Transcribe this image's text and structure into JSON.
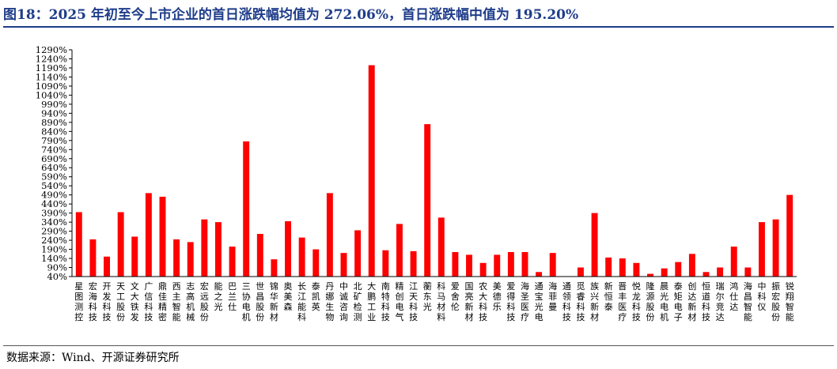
{
  "figure": {
    "title": "图18：2025 年初至今上市企业的首日涨跌幅均值为 272.06%，首日涨跌幅中值为 195.20%",
    "source": "数据来源：Wind、开源证券研究所"
  },
  "chart_data": {
    "type": "bar",
    "title": "",
    "xlabel": "",
    "ylabel": "",
    "ylim": [
      40,
      1290
    ],
    "ytick_step": 50,
    "ytick_suffix": "%",
    "bar_color": "#ff0000",
    "categories": [
      "星图测控",
      "宏海科技",
      "开发科技",
      "天工股份",
      "文大铁发",
      "广信科技",
      "鼎佳精密",
      "西主智能",
      "志高机械",
      "宏远股份",
      "能之光",
      "巴兰仕",
      "三协电机",
      "世昌股份",
      "锦华新材",
      "奥美森",
      "长江能科",
      "泰凯英",
      "丹娜生物",
      "中诚咨询",
      "北矿检测",
      "大鹏工业",
      "南特科技",
      "精创电气",
      "江天科技",
      "蘅东光",
      "科马材料",
      "爱舍伦",
      "国亮新材",
      "农大科技",
      "美德乐",
      "爱得科技",
      "海圣医疗",
      "通宝光电",
      "海菲曼",
      "通领科技",
      "觅睿科技",
      "族兴新材",
      "新恒泰",
      "晋丰医疗",
      "悦龙科技",
      "隆源股份",
      "晨光电机",
      "泰矩电子",
      "创达新材",
      "恒道科技",
      "瑞尔竞达",
      "鸿仕达",
      "海昌智能",
      "中科仪",
      "振宏股份",
      "锐翔智能"
    ],
    "values": [
      395,
      245,
      150,
      395,
      260,
      500,
      480,
      245,
      230,
      355,
      340,
      205,
      785,
      275,
      135,
      345,
      255,
      190,
      500,
      170,
      295,
      1205,
      185,
      330,
      180,
      880,
      365,
      175,
      160,
      115,
      160,
      175,
      175,
      65,
      170,
      0,
      90,
      390,
      145,
      140,
      115,
      55,
      85,
      120,
      165,
      65,
      90,
      205,
      90,
      340,
      355,
      490
    ]
  }
}
